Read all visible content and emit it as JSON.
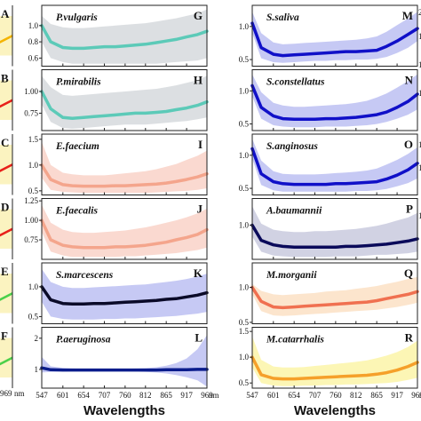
{
  "chart_data": {
    "type": "line",
    "x": [
      547,
      570,
      601,
      625,
      654,
      680,
      707,
      735,
      760,
      786,
      812,
      840,
      865,
      890,
      917,
      945,
      969
    ],
    "xticks": [
      547,
      601,
      654,
      707,
      760,
      812,
      865,
      917,
      969
    ],
    "xlabel": "Wavelengths",
    "xunit": "nm",
    "left_edge_labels": [
      "A",
      "B",
      "C",
      "D",
      "E",
      "F"
    ],
    "left_edge_ticks": [
      "969",
      "nm"
    ],
    "right_edge_ticks": [
      "2",
      "1",
      "1",
      "1",
      "1",
      "1",
      "1"
    ],
    "panels": [
      {
        "letter": "G",
        "name": "P.vulgaris",
        "ylim": [
          0.5,
          1.25
        ],
        "yticks": [
          "0.6",
          "0.8",
          "1.0"
        ],
        "color": "#5ccab8",
        "band": "#d6d9dd",
        "values": [
          1.0,
          0.8,
          0.73,
          0.72,
          0.72,
          0.73,
          0.74,
          0.74,
          0.75,
          0.76,
          0.77,
          0.79,
          0.81,
          0.83,
          0.86,
          0.89,
          0.93
        ],
        "lower": [
          0.8,
          0.6,
          0.55,
          0.53,
          0.53,
          0.53,
          0.53,
          0.53,
          0.53,
          0.53,
          0.53,
          0.53,
          0.54,
          0.55,
          0.56,
          0.57,
          0.6
        ],
        "upper": [
          1.12,
          1.02,
          0.98,
          0.97,
          0.97,
          0.98,
          0.99,
          1.0,
          1.01,
          1.02,
          1.03,
          1.05,
          1.07,
          1.09,
          1.12,
          1.15,
          1.2
        ]
      },
      {
        "letter": "H",
        "name": "P.mirabilis",
        "ylim": [
          0.55,
          1.25
        ],
        "yticks": [
          "0.75",
          "1.00"
        ],
        "color": "#5ccab8",
        "band": "#d6d9dd",
        "values": [
          1.0,
          0.8,
          0.7,
          0.69,
          0.7,
          0.71,
          0.72,
          0.73,
          0.74,
          0.75,
          0.75,
          0.76,
          0.77,
          0.79,
          0.81,
          0.84,
          0.88
        ],
        "lower": [
          0.85,
          0.65,
          0.58,
          0.57,
          0.58,
          0.59,
          0.6,
          0.61,
          0.62,
          0.62,
          0.62,
          0.63,
          0.64,
          0.65,
          0.66,
          0.68,
          0.7
        ],
        "upper": [
          1.18,
          1.05,
          0.96,
          0.95,
          0.96,
          0.97,
          0.98,
          0.99,
          1.0,
          1.01,
          1.02,
          1.03,
          1.05,
          1.07,
          1.1,
          1.13,
          1.18
        ]
      },
      {
        "letter": "I",
        "name": "E.faecium",
        "ylim": [
          0.42,
          1.6
        ],
        "yticks": [
          "0.5",
          "1.0",
          "1.5"
        ],
        "color": "#f4a58c",
        "band": "#f9d2c8",
        "values": [
          1.0,
          0.72,
          0.62,
          0.6,
          0.59,
          0.59,
          0.59,
          0.6,
          0.6,
          0.61,
          0.62,
          0.63,
          0.65,
          0.68,
          0.72,
          0.77,
          0.83
        ],
        "lower": [
          0.75,
          0.52,
          0.48,
          0.47,
          0.46,
          0.46,
          0.46,
          0.46,
          0.46,
          0.46,
          0.46,
          0.47,
          0.48,
          0.49,
          0.5,
          0.52,
          0.55
        ],
        "upper": [
          1.45,
          1.0,
          0.85,
          0.82,
          0.8,
          0.8,
          0.8,
          0.82,
          0.84,
          0.86,
          0.88,
          0.92,
          0.97,
          1.02,
          1.1,
          1.18,
          1.28
        ]
      },
      {
        "letter": "J",
        "name": "E.faecalis",
        "ylim": [
          0.5,
          1.28
        ],
        "yticks": [
          "0.75",
          "1.00",
          "1.25"
        ],
        "color": "#f4a58c",
        "band": "#f9d2c8",
        "values": [
          1.0,
          0.75,
          0.68,
          0.66,
          0.65,
          0.65,
          0.65,
          0.66,
          0.66,
          0.67,
          0.68,
          0.7,
          0.72,
          0.75,
          0.78,
          0.82,
          0.88
        ],
        "lower": [
          0.85,
          0.6,
          0.55,
          0.53,
          0.53,
          0.53,
          0.53,
          0.53,
          0.54,
          0.54,
          0.55,
          0.56,
          0.57,
          0.58,
          0.6,
          0.62,
          0.65
        ],
        "upper": [
          1.2,
          0.97,
          0.88,
          0.85,
          0.84,
          0.84,
          0.85,
          0.86,
          0.87,
          0.89,
          0.91,
          0.94,
          0.97,
          1.0,
          1.04,
          1.09,
          1.15
        ]
      },
      {
        "letter": "K",
        "name": "S.marcescens",
        "ylim": [
          0.38,
          1.4
        ],
        "yticks": [
          "0.5",
          "1.0"
        ],
        "color": "#0a0a28",
        "band": "#bcbff2",
        "values": [
          1.0,
          0.78,
          0.72,
          0.71,
          0.71,
          0.72,
          0.72,
          0.73,
          0.74,
          0.75,
          0.76,
          0.77,
          0.79,
          0.8,
          0.83,
          0.86,
          0.9
        ],
        "lower": [
          0.75,
          0.5,
          0.46,
          0.45,
          0.45,
          0.45,
          0.46,
          0.46,
          0.47,
          0.47,
          0.48,
          0.49,
          0.5,
          0.51,
          0.53,
          0.55,
          0.58
        ],
        "upper": [
          1.3,
          1.08,
          1.0,
          0.98,
          0.98,
          0.99,
          1.0,
          1.01,
          1.02,
          1.03,
          1.04,
          1.06,
          1.08,
          1.1,
          1.13,
          1.17,
          1.22
        ]
      },
      {
        "letter": "L",
        "name": "P.aeruginosa",
        "ylim": [
          0.4,
          2.35
        ],
        "yticks": [
          "1",
          "2"
        ],
        "color": "#0a1c8c",
        "band": "#bcbff2",
        "values": [
          1.05,
          0.99,
          0.98,
          0.98,
          0.98,
          0.98,
          0.98,
          0.98,
          0.98,
          0.98,
          0.98,
          0.98,
          0.99,
          0.99,
          0.99,
          1.0,
          1.0
        ],
        "lower": [
          0.9,
          0.92,
          0.93,
          0.94,
          0.94,
          0.94,
          0.94,
          0.94,
          0.94,
          0.93,
          0.92,
          0.9,
          0.87,
          0.82,
          0.75,
          0.65,
          0.45
        ],
        "upper": [
          1.4,
          1.1,
          1.05,
          1.03,
          1.02,
          1.02,
          1.02,
          1.02,
          1.02,
          1.03,
          1.04,
          1.07,
          1.12,
          1.2,
          1.35,
          1.65,
          2.1
        ]
      },
      {
        "letter": "M",
        "name": "S.saliva",
        "ylim": [
          0.4,
          1.32
        ],
        "yticks": [
          "0.5",
          "1.0"
        ],
        "color": "#1010c8",
        "band": "#bcbff2",
        "values": [
          1.05,
          0.68,
          0.58,
          0.56,
          0.57,
          0.58,
          0.59,
          0.6,
          0.61,
          0.62,
          0.62,
          0.63,
          0.64,
          0.7,
          0.78,
          0.88,
          0.97
        ],
        "lower": [
          0.9,
          0.52,
          0.46,
          0.45,
          0.46,
          0.47,
          0.48,
          0.48,
          0.49,
          0.49,
          0.5,
          0.5,
          0.51,
          0.54,
          0.6,
          0.68,
          0.78
        ],
        "upper": [
          1.22,
          0.9,
          0.76,
          0.73,
          0.74,
          0.75,
          0.76,
          0.77,
          0.78,
          0.79,
          0.8,
          0.82,
          0.85,
          0.92,
          1.02,
          1.12,
          1.22
        ]
      },
      {
        "letter": "N",
        "name": "S.constellatus",
        "ylim": [
          0.4,
          1.32
        ],
        "yticks": [
          "0.5",
          "1.0"
        ],
        "color": "#1010c8",
        "band": "#bcbff2",
        "values": [
          1.08,
          0.75,
          0.62,
          0.58,
          0.57,
          0.57,
          0.57,
          0.58,
          0.58,
          0.59,
          0.6,
          0.62,
          0.64,
          0.68,
          0.75,
          0.84,
          0.95
        ],
        "lower": [
          0.92,
          0.58,
          0.48,
          0.46,
          0.45,
          0.45,
          0.45,
          0.46,
          0.46,
          0.46,
          0.47,
          0.48,
          0.5,
          0.53,
          0.58,
          0.64,
          0.72
        ],
        "upper": [
          1.25,
          0.98,
          0.82,
          0.78,
          0.76,
          0.76,
          0.77,
          0.78,
          0.79,
          0.8,
          0.82,
          0.85,
          0.9,
          0.96,
          1.05,
          1.15,
          1.25
        ]
      },
      {
        "letter": "O",
        "name": "S.anginosus",
        "ylim": [
          0.4,
          1.32
        ],
        "yticks": [
          "0.5",
          "1.0"
        ],
        "color": "#1010c8",
        "band": "#bcbff2",
        "values": [
          1.1,
          0.72,
          0.6,
          0.57,
          0.56,
          0.56,
          0.56,
          0.56,
          0.57,
          0.57,
          0.58,
          0.59,
          0.6,
          0.64,
          0.7,
          0.78,
          0.88
        ],
        "lower": [
          0.95,
          0.55,
          0.47,
          0.45,
          0.45,
          0.45,
          0.45,
          0.45,
          0.45,
          0.45,
          0.46,
          0.46,
          0.47,
          0.49,
          0.53,
          0.58,
          0.65
        ],
        "upper": [
          1.25,
          0.92,
          0.76,
          0.72,
          0.71,
          0.71,
          0.71,
          0.72,
          0.73,
          0.74,
          0.75,
          0.77,
          0.8,
          0.86,
          0.93,
          1.02,
          1.12
        ]
      },
      {
        "letter": "P",
        "name": "A.baumannii",
        "ylim": [
          0.55,
          1.35
        ],
        "yticks": [
          "1.0"
        ],
        "color": "#0a0a5a",
        "band": "#c9cade",
        "values": [
          1.0,
          0.8,
          0.74,
          0.72,
          0.71,
          0.71,
          0.71,
          0.71,
          0.71,
          0.72,
          0.72,
          0.73,
          0.74,
          0.75,
          0.77,
          0.79,
          0.82
        ],
        "lower": [
          0.85,
          0.65,
          0.6,
          0.59,
          0.58,
          0.58,
          0.58,
          0.58,
          0.59,
          0.59,
          0.59,
          0.6,
          0.61,
          0.61,
          0.62,
          0.63,
          0.65
        ],
        "upper": [
          1.25,
          1.02,
          0.94,
          0.92,
          0.91,
          0.91,
          0.92,
          0.92,
          0.93,
          0.94,
          0.95,
          0.97,
          0.99,
          1.02,
          1.06,
          1.1,
          1.16
        ]
      },
      {
        "letter": "Q",
        "name": "M.morganii",
        "ylim": [
          0.48,
          1.35
        ],
        "yticks": [
          "0.5",
          "1.0"
        ],
        "color": "#f07050",
        "band": "#fbe0c4",
        "values": [
          1.0,
          0.8,
          0.72,
          0.71,
          0.72,
          0.73,
          0.74,
          0.75,
          0.76,
          0.77,
          0.78,
          0.79,
          0.81,
          0.84,
          0.87,
          0.9,
          0.94
        ],
        "lower": [
          0.9,
          0.66,
          0.6,
          0.59,
          0.6,
          0.61,
          0.62,
          0.63,
          0.64,
          0.65,
          0.66,
          0.67,
          0.68,
          0.7,
          0.72,
          0.75,
          0.78
        ],
        "upper": [
          1.05,
          0.95,
          0.9,
          0.89,
          0.9,
          0.91,
          0.92,
          0.94,
          0.95,
          0.96,
          0.98,
          1.0,
          1.02,
          1.05,
          1.08,
          1.12,
          1.15
        ]
      },
      {
        "letter": "R",
        "name": "M.catarrhalis",
        "ylim": [
          0.4,
          1.58
        ],
        "yticks": [
          "0.5",
          "1.0",
          "1.5"
        ],
        "color": "#f5a02a",
        "band": "#fbf5a8",
        "values": [
          1.0,
          0.66,
          0.59,
          0.58,
          0.58,
          0.59,
          0.6,
          0.61,
          0.62,
          0.63,
          0.64,
          0.65,
          0.67,
          0.7,
          0.75,
          0.82,
          0.9
        ],
        "lower": [
          0.8,
          0.5,
          0.45,
          0.44,
          0.44,
          0.45,
          0.45,
          0.46,
          0.46,
          0.47,
          0.47,
          0.48,
          0.49,
          0.5,
          0.52,
          0.56,
          0.6
        ],
        "upper": [
          1.4,
          0.95,
          0.82,
          0.8,
          0.8,
          0.81,
          0.83,
          0.85,
          0.87,
          0.89,
          0.91,
          0.94,
          0.98,
          1.03,
          1.1,
          1.2,
          1.32
        ]
      }
    ]
  }
}
